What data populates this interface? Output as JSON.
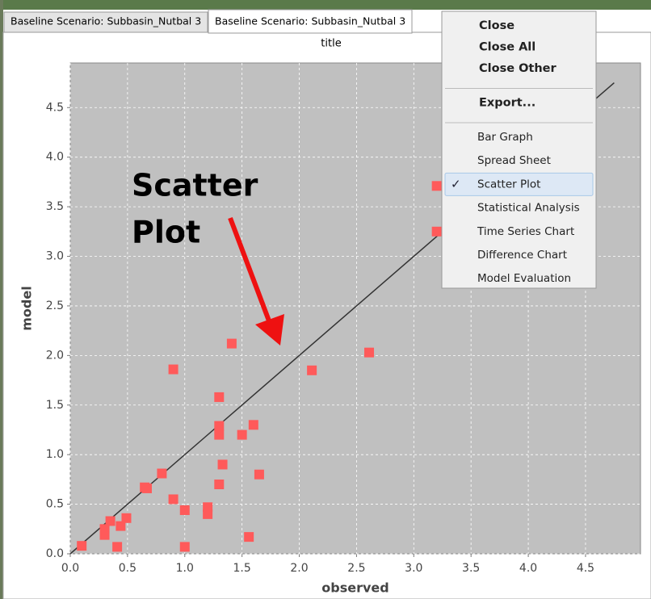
{
  "tabs": {
    "labels": [
      "Baseline Scenario: Subbasin_Nutbal 3",
      "Baseline Scenario: Subbasin_Nutbal 3"
    ],
    "active": 1
  },
  "chart_data": {
    "type": "scatter",
    "title": "title",
    "x_label": "observed",
    "y_label": "model",
    "annotation": [
      "Scatter",
      "Plot"
    ],
    "xlim": [
      0,
      4.98
    ],
    "ylim": [
      0,
      4.95
    ],
    "xticks": [
      {
        "value": 0,
        "label": "0.0"
      },
      0.5,
      {
        "value": 1,
        "label": "1.0"
      },
      1.5,
      {
        "value": 2,
        "label": "2.0"
      },
      2.5,
      {
        "value": 3,
        "label": "3.0"
      },
      3.5,
      {
        "value": 4,
        "label": "4.0"
      },
      4.5
    ],
    "yticks": [
      {
        "value": 0,
        "label": "0.0"
      },
      0.5,
      {
        "value": 1,
        "label": "1.0"
      },
      1.5,
      {
        "value": 2,
        "label": "2.0"
      },
      2.5,
      {
        "value": 3,
        "label": "3.0"
      },
      3.5,
      {
        "value": 4,
        "label": "4.0"
      },
      4.5
    ],
    "grid": true,
    "background": "#c0c0c0",
    "series": [
      {
        "color": "#ff5a5a",
        "x": [
          0.1,
          0.3,
          0.3,
          0.35,
          0.41,
          0.44,
          0.49,
          0.65,
          0.67,
          0.8,
          0.9,
          0.9,
          1.0,
          1.0,
          1.2,
          1.2,
          1.3,
          1.3,
          1.3,
          1.3,
          1.33,
          1.41,
          1.5,
          1.6,
          1.56,
          1.65,
          2.11,
          2.61,
          3.2,
          3.2
        ],
        "values": [
          0.08,
          0.19,
          0.25,
          0.33,
          0.07,
          0.28,
          0.36,
          0.67,
          0.66,
          0.81,
          1.86,
          0.55,
          0.44,
          0.07,
          0.47,
          0.4,
          1.58,
          1.29,
          1.2,
          0.7,
          0.9,
          2.12,
          1.2,
          1.3,
          0.17,
          0.8,
          1.85,
          2.03,
          3.25,
          3.71
        ]
      }
    ],
    "reference_line": {
      "color": "#333333",
      "x": [
        0,
        4.75
      ],
      "values": [
        0,
        4.75
      ]
    }
  },
  "menu": {
    "groups": [
      [
        "Close",
        "Close All",
        "Close Other"
      ],
      [
        "Export..."
      ],
      [
        "Bar Graph",
        "Spread Sheet",
        "Scatter Plot",
        "Statistical Analysis",
        "Time Series Chart",
        "Difference Chart",
        "Model Evaluation"
      ]
    ],
    "check_mark": "✓",
    "checked": [
      2,
      2
    ]
  }
}
